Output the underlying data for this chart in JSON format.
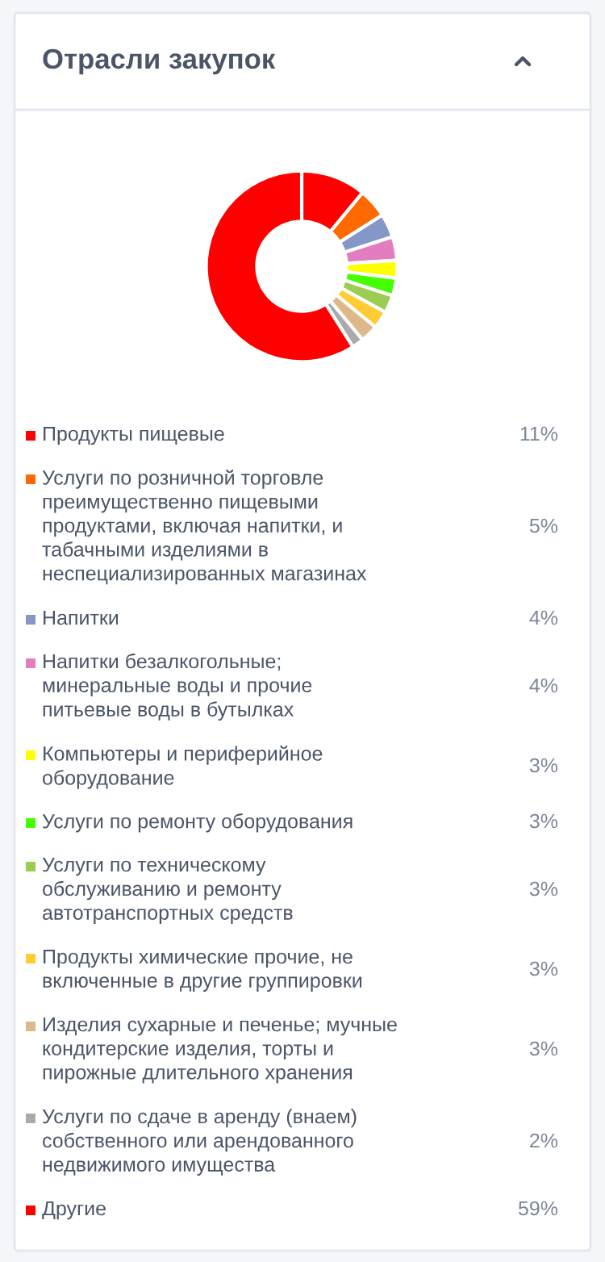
{
  "chart_data": {
    "type": "donut",
    "title": "Отрасли закупок",
    "categories": [
      "Продукты пищевые",
      "Услуги по розничной торговле преимущественно пищевыми продуктами, включая напитки, и табачными изделиями в неспециализированных магазинах",
      "Напитки",
      "Напитки безалкогольные; минеральные воды и прочие питьевые воды в бутылках",
      "Компьютеры и периферийное оборудование",
      "Услуги по ремонту оборудования",
      "Услуги по техническому обслуживанию и ремонту автотранспортных средств",
      "Продукты химические прочие, не включенные в другие группировки",
      "Изделия сухарные и печенье; мучные кондитерские изделия, торты и пирожные длительного хранения",
      "Услуги по сдаче в аренду (внаем) собственного или арендованного недвижимого имущества",
      "Другие"
    ],
    "values": [
      11,
      5,
      4,
      4,
      3,
      3,
      3,
      3,
      3,
      2,
      59
    ],
    "value_labels": [
      "11%",
      "5%",
      "4%",
      "4%",
      "3%",
      "3%",
      "3%",
      "3%",
      "3%",
      "2%",
      "59%"
    ],
    "colors": [
      "#ff0000",
      "#ff6a00",
      "#8596c8",
      "#e27ec0",
      "#ffff00",
      "#44ff00",
      "#9ccc50",
      "#ffcc33",
      "#ddb888",
      "#aaaaaa",
      "#ff0000"
    ],
    "legend": "bottom"
  }
}
